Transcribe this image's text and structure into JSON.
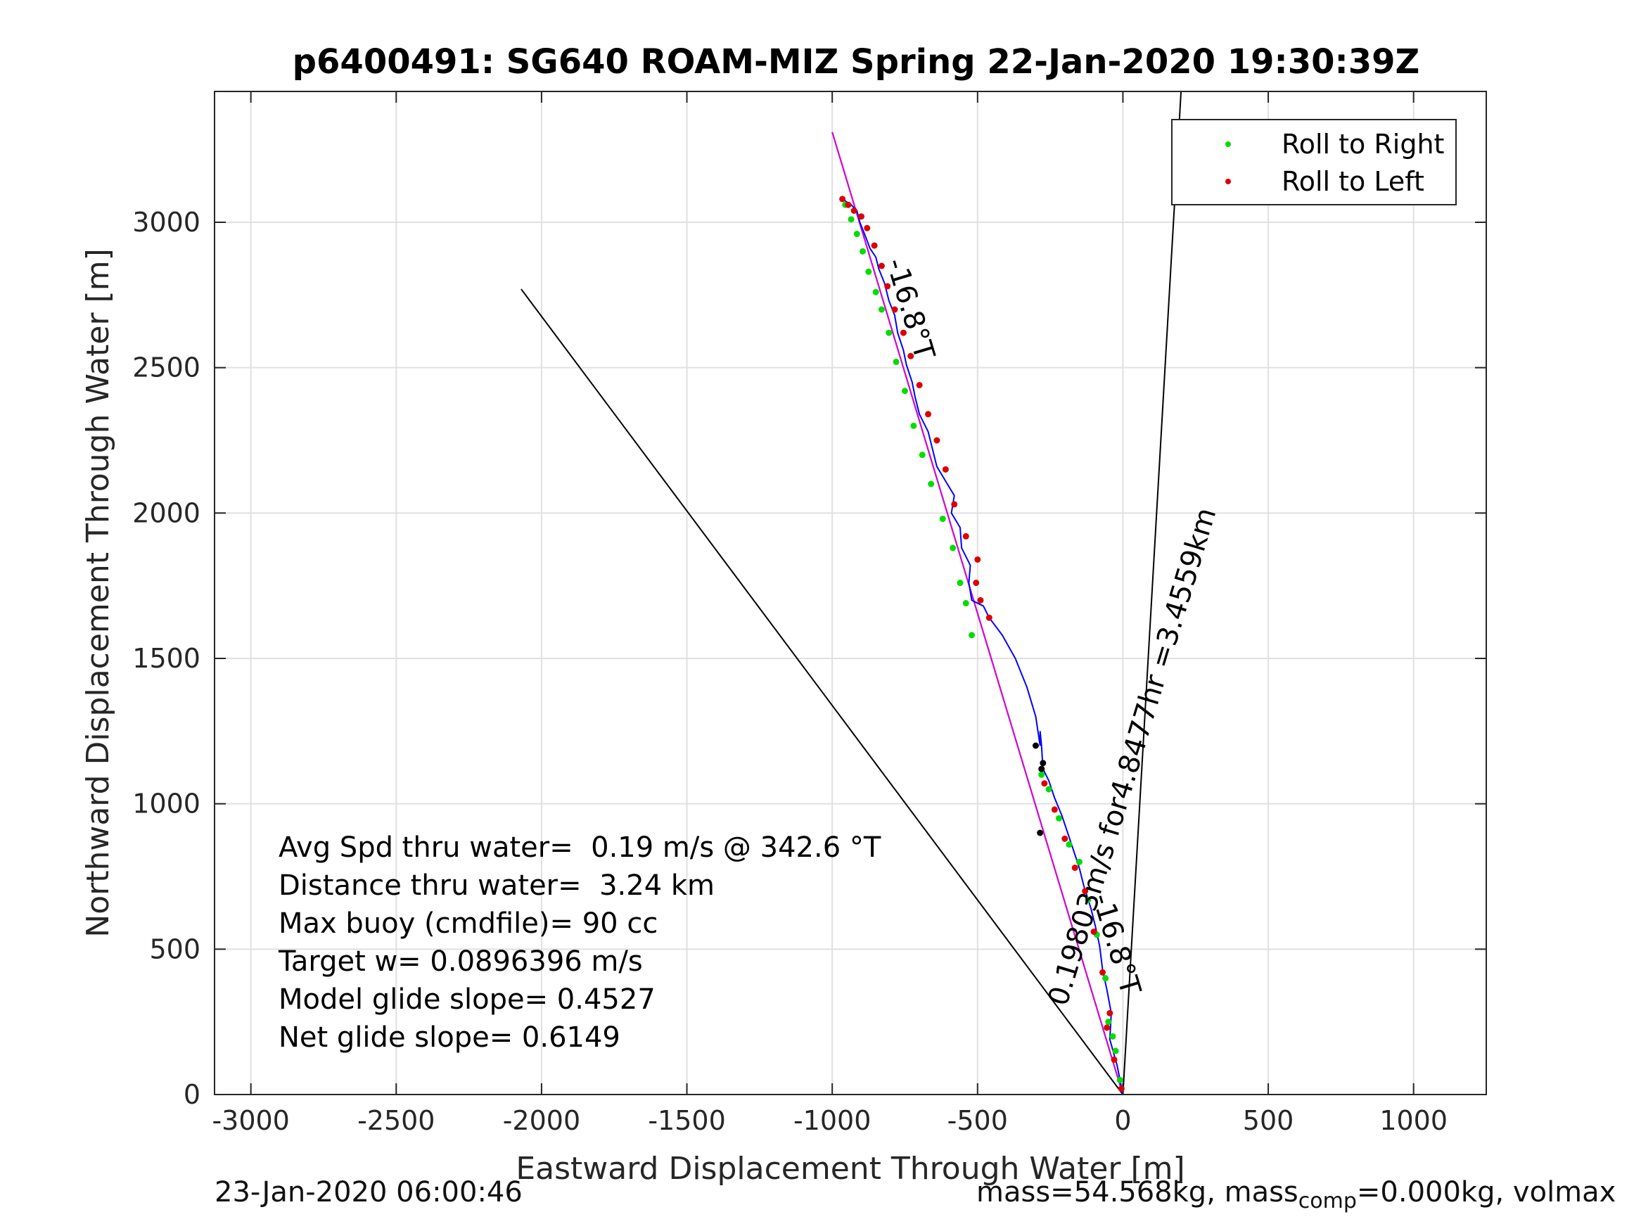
{
  "chart_data": {
    "type": "scatter",
    "title": "p6400491: SG640 ROAM-MIZ Spring 22-Jan-2020 19:30:39Z",
    "xlabel": "Eastward Displacement Through Water [m]",
    "ylabel": "Northward Displacement Through Water [m]",
    "xlim": [
      -3125,
      1250
    ],
    "ylim": [
      0,
      3450
    ],
    "xticks": [
      -3000,
      -2500,
      -2000,
      -1500,
      -1000,
      -500,
      0,
      500,
      1000
    ],
    "yticks": [
      0,
      500,
      1000,
      1500,
      2000,
      2500,
      3000
    ],
    "grid": true,
    "legend_position": "top-right",
    "legend": [
      "Roll to Right",
      "Roll to Left"
    ],
    "colors": {
      "roll_right": "#00dd00",
      "roll_left": "#dd0000",
      "track": "#0000ff",
      "drift_line": "#dd00dd",
      "reference": "#000000",
      "neutral_points": "#000000"
    },
    "annotations": {
      "heading_top": "-16.8°T",
      "heading_bottom": "-16.8°T",
      "distance": "0.19803m/s for4.8477hr =3.4559km"
    },
    "stats": [
      "Avg Spd thru water=  0.19 m/s @ 342.6 °T",
      "Distance thru water=  3.24 km",
      "Max buoy (cmdfile)= 90 cc",
      "Target w= 0.0896396 m/s",
      "Model glide slope= 0.4527",
      "Net glide slope= 0.6149"
    ],
    "reference_lines": [
      {
        "x": [
          0,
          -2070
        ],
        "y": [
          0,
          2770
        ]
      },
      {
        "x": [
          0,
          200
        ],
        "y": [
          0,
          3450
        ]
      },
      {
        "x": [
          0,
          -1000
        ],
        "y": [
          0,
          3310
        ]
      }
    ],
    "drift_line": {
      "x": [
        0,
        -1000
      ],
      "y": [
        0,
        3310
      ]
    },
    "track": {
      "x": [
        0,
        -20,
        -45,
        -40,
        -55,
        -70,
        -80,
        -95,
        -110,
        -135,
        -150,
        -170,
        -190,
        -210,
        -235,
        -255,
        -275,
        -280,
        -285,
        -285,
        -300,
        -330,
        -370,
        -415,
        -460,
        -480,
        -520,
        -530,
        -525,
        -555,
        -560,
        -590,
        -580,
        -610,
        -640,
        -655,
        -670,
        -700,
        -715,
        -725,
        -745,
        -755,
        -775,
        -785,
        -805,
        -820,
        -840,
        -850,
        -870,
        -885,
        -905,
        -915,
        -935,
        -950,
        -965
      ],
      "y": [
        0,
        100,
        190,
        280,
        360,
        430,
        510,
        580,
        640,
        720,
        780,
        840,
        900,
        960,
        1020,
        1080,
        1120,
        1200,
        1250,
        1200,
        1300,
        1400,
        1500,
        1580,
        1640,
        1680,
        1700,
        1760,
        1820,
        1880,
        1950,
        2000,
        2060,
        2110,
        2160,
        2220,
        2280,
        2340,
        2400,
        2450,
        2510,
        2560,
        2620,
        2680,
        2730,
        2790,
        2840,
        2880,
        2910,
        2950,
        3000,
        3040,
        3060,
        3070,
        3080
      ]
    },
    "roll_right": {
      "x": [
        -10,
        -25,
        -50,
        -35,
        -60,
        -90,
        -120,
        -150,
        -185,
        -220,
        -255,
        -280,
        -520,
        -540,
        -560,
        -585,
        -620,
        -660,
        -690,
        -720,
        -750,
        -780,
        -805,
        -830,
        -850,
        -875,
        -895,
        -915,
        -935,
        -955
      ],
      "y": [
        50,
        150,
        250,
        200,
        400,
        550,
        670,
        800,
        860,
        950,
        1050,
        1100,
        1580,
        1690,
        1760,
        1880,
        1980,
        2100,
        2200,
        2300,
        2420,
        2520,
        2620,
        2700,
        2760,
        2830,
        2900,
        2960,
        3010,
        3060
      ]
    },
    "roll_left": {
      "x": [
        -5,
        -30,
        -55,
        -45,
        -70,
        -100,
        -130,
        -165,
        -200,
        -235,
        -270,
        -460,
        -490,
        -505,
        -500,
        -540,
        -580,
        -610,
        -640,
        -670,
        -700,
        -730,
        -755,
        -785,
        -810,
        -830,
        -855,
        -880,
        -900,
        -925,
        -945,
        -965
      ],
      "y": [
        20,
        120,
        230,
        280,
        420,
        560,
        700,
        780,
        880,
        980,
        1070,
        1640,
        1700,
        1760,
        1840,
        1920,
        2030,
        2150,
        2250,
        2340,
        2440,
        2540,
        2620,
        2700,
        2780,
        2850,
        2920,
        2980,
        3020,
        3040,
        3060,
        3080
      ]
    },
    "neutral_points": {
      "x": [
        -280,
        -275,
        -300,
        -285
      ],
      "y": [
        1120,
        1140,
        1200,
        900
      ]
    }
  },
  "footer": {
    "timestamp": "23-Jan-2020 06:00:46",
    "mass_prefix": "mass=54.568kg, mass",
    "mass_sub": "comp",
    "mass_suffix": "=0.000kg, volmax"
  }
}
